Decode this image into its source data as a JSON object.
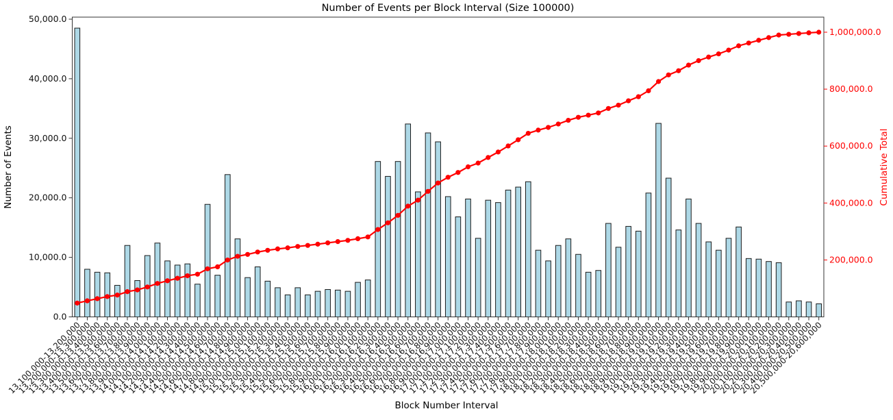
{
  "figure": {
    "background_color": "#ffffff"
  },
  "chart_data": {
    "type": "bar",
    "title": "Number of Events per Block Interval (Size 100000)",
    "xlabel": "Block Number Interval",
    "ylabel_left": "Number of Events",
    "ylabel_right": "Cumulative Total",
    "legend_position": "none",
    "grid": false,
    "bar_color": "#add8e6",
    "bar_edge_color": "#1a1a1a",
    "line_color": "#ff0000",
    "axis_color": "#333333",
    "ylim_left": [
      0,
      50350
    ],
    "ylim_right": [
      0,
      1053000
    ],
    "yticks_left": {
      "values": [
        0,
        10000,
        20000,
        30000,
        40000,
        50000
      ],
      "labels": [
        "0.0",
        "10,000.0",
        "20,000.0",
        "30,000.0",
        "40,000.0",
        "50,000.0"
      ]
    },
    "yticks_right": {
      "values": [
        200000,
        400000,
        600000,
        800000,
        1000000
      ],
      "labels": [
        "200,000.0",
        "400,000.0",
        "600,000.0",
        "800,000.0",
        "1,000,000.0"
      ]
    },
    "categories": [
      "13,100,000-13,200,000",
      "13,200,000-13,300,000",
      "13,300,000-13,400,000",
      "13,400,000-13,500,000",
      "13,500,000-13,600,000",
      "13,600,000-13,700,000",
      "13,700,000-13,800,000",
      "13,800,000-13,900,000",
      "13,900,000-14,000,000",
      "14,000,000-14,100,000",
      "14,100,000-14,200,000",
      "14,200,000-14,300,000",
      "14,300,000-14,400,000",
      "14,400,000-14,500,000",
      "14,500,000-14,600,000",
      "14,600,000-14,700,000",
      "14,700,000-14,800,000",
      "14,800,000-14,900,000",
      "14,900,000-15,000,000",
      "15,000,000-15,100,000",
      "15,100,000-15,200,000",
      "15,200,000-15,300,000",
      "15,300,000-15,400,000",
      "15,400,000-15,500,000",
      "15,500,000-15,600,000",
      "15,600,000-15,700,000",
      "15,700,000-15,800,000",
      "15,800,000-15,900,000",
      "15,900,000-16,000,000",
      "16,000,000-16,100,000",
      "16,100,000-16,200,000",
      "16,200,000-16,300,000",
      "16,300,000-16,400,000",
      "16,400,000-16,500,000",
      "16,500,000-16,600,000",
      "16,600,000-16,700,000",
      "16,700,000-16,800,000",
      "16,800,000-16,900,000",
      "16,900,000-17,000,000",
      "17,000,000-17,100,000",
      "17,100,000-17,200,000",
      "17,200,000-17,300,000",
      "17,300,000-17,400,000",
      "17,400,000-17,500,000",
      "17,500,000-17,600,000",
      "17,600,000-17,700,000",
      "17,700,000-17,800,000",
      "17,800,000-17,900,000",
      "17,900,000-18,000,000",
      "18,000,000-18,100,000",
      "18,100,000-18,200,000",
      "18,200,000-18,300,000",
      "18,300,000-18,400,000",
      "18,400,000-18,500,000",
      "18,500,000-18,600,000",
      "18,600,000-18,700,000",
      "18,700,000-18,800,000",
      "18,800,000-18,900,000",
      "18,900,000-19,000,000",
      "19,000,000-19,100,000",
      "19,100,000-19,200,000",
      "19,200,000-19,300,000",
      "19,300,000-19,400,000",
      "19,400,000-19,500,000",
      "19,500,000-19,600,000",
      "19,600,000-19,700,000",
      "19,700,000-19,800,000",
      "19,800,000-19,900,000",
      "19,900,000-20,000,000",
      "20,000,000-20,100,000",
      "20,100,000-20,200,000",
      "20,200,000-20,300,000",
      "20,300,000-20,400,000",
      "20,400,000-20,500,000",
      "20,500,000-20,600,000"
    ],
    "series": [
      {
        "name": "Number of Events",
        "type": "bar",
        "axis": "left",
        "color": "#add8e6",
        "values": [
          48500,
          8000,
          7500,
          7400,
          5300,
          12000,
          6100,
          10300,
          12400,
          9400,
          8700,
          8900,
          5500,
          18900,
          7000,
          23900,
          13100,
          6600,
          8400,
          6000,
          4900,
          3700,
          4900,
          3700,
          4300,
          4600,
          4500,
          4300,
          5800,
          6200,
          26100,
          23600,
          26100,
          32400,
          21000,
          30900,
          29400,
          20200,
          16800,
          19800,
          13200,
          19600,
          19200,
          21300,
          21800,
          22700,
          11200,
          9400,
          12000,
          13100,
          10500,
          7500,
          7800,
          15700,
          11700,
          15200,
          14400,
          20800,
          32500,
          23300,
          14600,
          19800,
          15700,
          12600,
          11200,
          13200,
          15100,
          9800,
          9700,
          9300,
          9100,
          2500,
          2700,
          2500,
          2200
        ]
      },
      {
        "name": "Cumulative Total",
        "type": "line",
        "axis": "right",
        "color": "#ff0000",
        "values": [
          48500,
          56500,
          64000,
          71400,
          76700,
          88700,
          94800,
          105100,
          117500,
          126900,
          135600,
          144500,
          150000,
          168900,
          175900,
          199800,
          212900,
          219500,
          227900,
          233900,
          238800,
          242500,
          247400,
          251100,
          255400,
          260000,
          264500,
          268800,
          274600,
          280800,
          306900,
          330500,
          356600,
          389000,
          410000,
          440900,
          470300,
          490500,
          507300,
          527100,
          540300,
          559900,
          579100,
          600400,
          622200,
          644900,
          656100,
          665500,
          677500,
          690600,
          701100,
          708600,
          716400,
          732100,
          743800,
          759000,
          773400,
          794200,
          826700,
          850000,
          864600,
          884400,
          900100,
          912700,
          923900,
          937100,
          952200,
          962000,
          971700,
          981000,
          990100,
          992600,
          995300,
          997800,
          1000000
        ]
      }
    ]
  }
}
